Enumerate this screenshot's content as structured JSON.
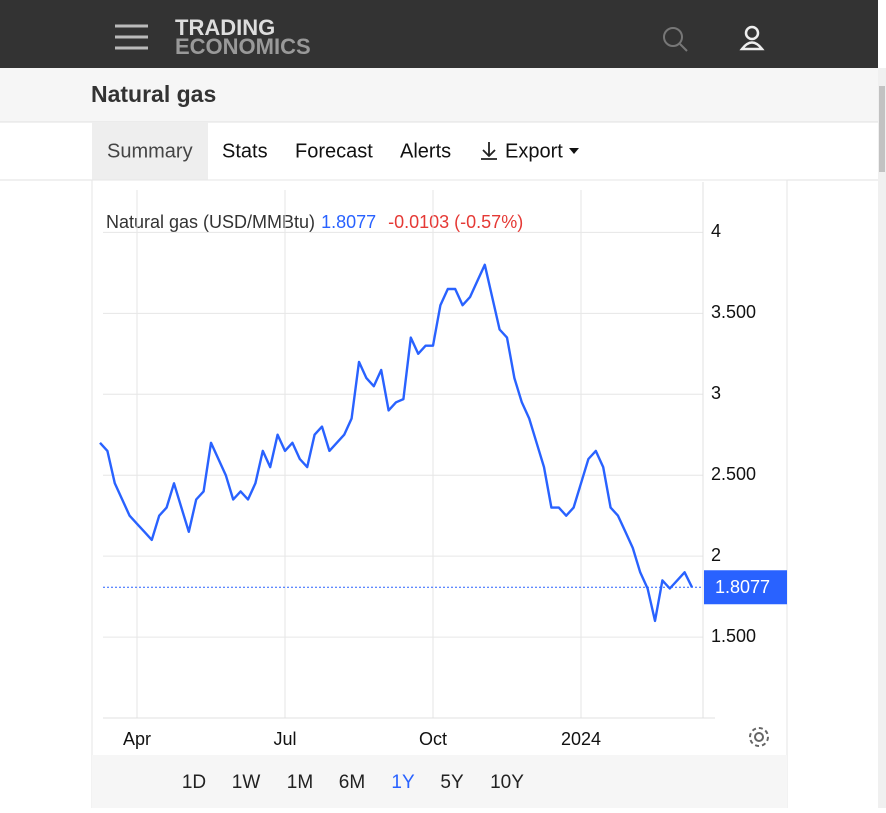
{
  "header": {
    "logo_top": "TRADING",
    "logo_bottom": "ECONOMICS"
  },
  "page_title": "Natural gas",
  "tabs": [
    "Summary",
    "Stats",
    "Forecast",
    "Alerts",
    "Export"
  ],
  "chart_data": {
    "type": "line",
    "title": "Natural gas (USD/MMBtu)",
    "last_value": 1.8077,
    "change": "-0.0103 (-0.57%)",
    "color": "#2962ff",
    "categories": [
      null,
      null,
      null,
      null,
      null,
      "Apr",
      null,
      null,
      null,
      null,
      null,
      null,
      null,
      null,
      null,
      null,
      null,
      null,
      null,
      null,
      null,
      null,
      null,
      null,
      null,
      "Jul",
      null,
      null,
      null,
      null,
      null,
      null,
      null,
      null,
      null,
      null,
      null,
      null,
      null,
      null,
      null,
      null,
      null,
      null,
      null,
      "Oct",
      null,
      null,
      null,
      null,
      null,
      null,
      null,
      null,
      null,
      null,
      null,
      null,
      null,
      null,
      null,
      null,
      null,
      null,
      null,
      "2024",
      null,
      null,
      null,
      null,
      null,
      null,
      null,
      null,
      null,
      null,
      null,
      null,
      null,
      null,
      null
    ],
    "values": [
      2.7,
      2.65,
      2.45,
      2.35,
      2.25,
      2.2,
      2.15,
      2.1,
      2.25,
      2.3,
      2.45,
      2.3,
      2.15,
      2.35,
      2.4,
      2.7,
      2.6,
      2.5,
      2.35,
      2.4,
      2.35,
      2.45,
      2.65,
      2.55,
      2.75,
      2.65,
      2.7,
      2.6,
      2.55,
      2.75,
      2.8,
      2.65,
      2.7,
      2.75,
      2.85,
      3.2,
      3.1,
      3.05,
      3.15,
      2.9,
      2.95,
      2.97,
      3.35,
      3.25,
      3.3,
      3.3,
      3.55,
      3.65,
      3.65,
      3.55,
      3.6,
      3.7,
      3.8,
      3.6,
      3.4,
      3.35,
      3.1,
      2.95,
      2.85,
      2.7,
      2.55,
      2.3,
      2.3,
      2.25,
      2.3,
      2.45,
      2.6,
      2.65,
      2.55,
      2.3,
      2.25,
      2.15,
      2.05,
      1.9,
      1.8,
      1.6,
      1.85,
      1.8,
      1.85,
      1.9,
      1.8077
    ],
    "ylim": [
      1,
      4.2
    ],
    "yticks": [
      4,
      {
        "value": 3.5,
        "label": "3.500"
      },
      3,
      {
        "value": 2.5,
        "label": "2.500"
      },
      2,
      {
        "value": 1.5,
        "label": "1.500"
      }
    ],
    "grid": true
  },
  "ranges": [
    "1D",
    "1W",
    "1M",
    "6M",
    "1Y",
    "5Y",
    "10Y"
  ],
  "active_range": "1Y"
}
